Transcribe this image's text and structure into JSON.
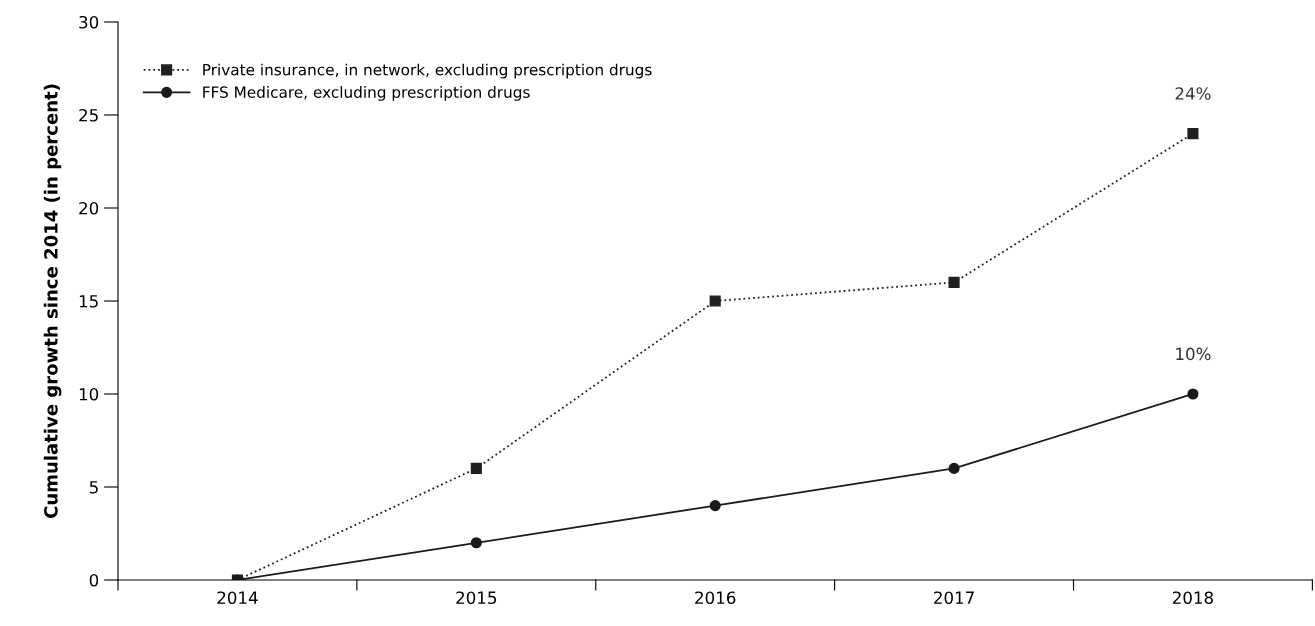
{
  "chart_data": {
    "type": "line",
    "ylabel": "Cumulative growth since 2014 (in percent)",
    "categories": [
      "2014",
      "2015",
      "2016",
      "2017",
      "2018"
    ],
    "series": [
      {
        "name": "Private insurance, in network, excluding prescription drugs",
        "color": "#231f20",
        "values": [
          0,
          6,
          15,
          16,
          24
        ],
        "marker": "square",
        "line_style": "dotted",
        "value_labels": [
          null,
          null,
          null,
          null,
          "24%"
        ]
      },
      {
        "name": "FFS Medicare, excluding prescription drugs",
        "color": "#1a1a1a",
        "values": [
          0,
          2,
          4,
          6,
          10
        ],
        "marker": "circle",
        "line_style": "solid",
        "value_labels": [
          null,
          null,
          null,
          null,
          "10%"
        ]
      }
    ],
    "ylim": [
      0,
      30
    ],
    "yticks": [
      0,
      5,
      10,
      15,
      20,
      25,
      30
    ],
    "grid": false,
    "legend": "top left"
  }
}
